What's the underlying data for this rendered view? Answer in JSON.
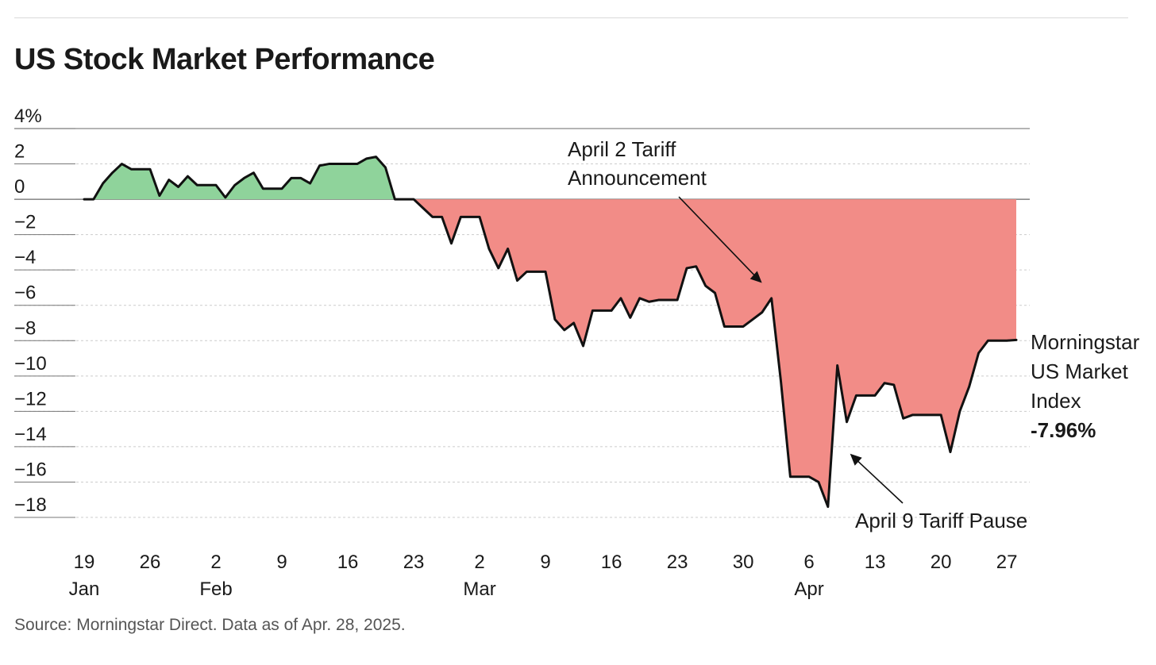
{
  "title": "US Stock Market Performance",
  "source": "Source: Morningstar Direct. Data as of Apr. 28, 2025.",
  "colors": {
    "positive_fill": "#8fd39b",
    "negative_fill": "#f28c87",
    "line": "#111111",
    "gridline": "#cccccc",
    "axis": "#888888"
  },
  "chart_data": {
    "type": "area",
    "title": "US Stock Market Performance",
    "xlabel": "",
    "ylabel": "",
    "ylim": [
      -18,
      4
    ],
    "xlim": [
      "2025-01-19",
      "2025-04-28"
    ],
    "grid": true,
    "y_ticks": [
      "4%",
      "2",
      "0",
      "−2",
      "−4",
      "−6",
      "−8",
      "−10",
      "−12",
      "−14",
      "−16",
      "−18"
    ],
    "y_tick_values": [
      4,
      2,
      0,
      -2,
      -4,
      -6,
      -8,
      -10,
      -12,
      -14,
      -16,
      -18
    ],
    "x_ticks": [
      {
        "date": "2025-01-19",
        "day": "19",
        "month": "Jan"
      },
      {
        "date": "2025-01-26",
        "day": "26",
        "month": ""
      },
      {
        "date": "2025-02-02",
        "day": "2",
        "month": "Feb"
      },
      {
        "date": "2025-02-09",
        "day": "9",
        "month": ""
      },
      {
        "date": "2025-02-16",
        "day": "16",
        "month": ""
      },
      {
        "date": "2025-02-23",
        "day": "23",
        "month": ""
      },
      {
        "date": "2025-03-02",
        "day": "2",
        "month": "Mar"
      },
      {
        "date": "2025-03-09",
        "day": "9",
        "month": ""
      },
      {
        "date": "2025-03-16",
        "day": "16",
        "month": ""
      },
      {
        "date": "2025-03-23",
        "day": "23",
        "month": ""
      },
      {
        "date": "2025-03-30",
        "day": "30",
        "month": ""
      },
      {
        "date": "2025-04-06",
        "day": "6",
        "month": "Apr"
      },
      {
        "date": "2025-04-13",
        "day": "13",
        "month": ""
      },
      {
        "date": "2025-04-20",
        "day": "20",
        "month": ""
      },
      {
        "date": "2025-04-27",
        "day": "27",
        "month": ""
      }
    ],
    "series": [
      {
        "points": [
          [
            "2025-01-19",
            0.0
          ],
          [
            "2025-01-20",
            0.0
          ],
          [
            "2025-01-21",
            0.9
          ],
          [
            "2025-01-22",
            1.5
          ],
          [
            "2025-01-23",
            2.0
          ],
          [
            "2025-01-24",
            1.7
          ],
          [
            "2025-01-25",
            1.7
          ],
          [
            "2025-01-26",
            1.7
          ],
          [
            "2025-01-27",
            0.2
          ],
          [
            "2025-01-28",
            1.1
          ],
          [
            "2025-01-29",
            0.7
          ],
          [
            "2025-01-30",
            1.3
          ],
          [
            "2025-01-31",
            0.8
          ],
          [
            "2025-02-01",
            0.8
          ],
          [
            "2025-02-02",
            0.8
          ],
          [
            "2025-02-03",
            0.1
          ],
          [
            "2025-02-04",
            0.8
          ],
          [
            "2025-02-05",
            1.2
          ],
          [
            "2025-02-06",
            1.5
          ],
          [
            "2025-02-07",
            0.6
          ],
          [
            "2025-02-08",
            0.6
          ],
          [
            "2025-02-09",
            0.6
          ],
          [
            "2025-02-10",
            1.2
          ],
          [
            "2025-02-11",
            1.2
          ],
          [
            "2025-02-12",
            0.9
          ],
          [
            "2025-02-13",
            1.9
          ],
          [
            "2025-02-14",
            2.0
          ],
          [
            "2025-02-15",
            2.0
          ],
          [
            "2025-02-16",
            2.0
          ],
          [
            "2025-02-17",
            2.0
          ],
          [
            "2025-02-18",
            2.3
          ],
          [
            "2025-02-19",
            2.4
          ],
          [
            "2025-02-20",
            1.8
          ],
          [
            "2025-02-21",
            0.0
          ],
          [
            "2025-02-22",
            0.0
          ],
          [
            "2025-02-23",
            0.0
          ],
          [
            "2025-02-24",
            -0.5
          ],
          [
            "2025-02-25",
            -1.0
          ],
          [
            "2025-02-26",
            -1.0
          ],
          [
            "2025-02-27",
            -2.5
          ],
          [
            "2025-02-28",
            -1.0
          ],
          [
            "2025-03-01",
            -1.0
          ],
          [
            "2025-03-02",
            -1.0
          ],
          [
            "2025-03-03",
            -2.8
          ],
          [
            "2025-03-04",
            -3.9
          ],
          [
            "2025-03-05",
            -2.8
          ],
          [
            "2025-03-06",
            -4.6
          ],
          [
            "2025-03-07",
            -4.1
          ],
          [
            "2025-03-08",
            -4.1
          ],
          [
            "2025-03-09",
            -4.1
          ],
          [
            "2025-03-10",
            -6.8
          ],
          [
            "2025-03-11",
            -7.4
          ],
          [
            "2025-03-12",
            -7.0
          ],
          [
            "2025-03-13",
            -8.3
          ],
          [
            "2025-03-14",
            -6.3
          ],
          [
            "2025-03-15",
            -6.3
          ],
          [
            "2025-03-16",
            -6.3
          ],
          [
            "2025-03-17",
            -5.6
          ],
          [
            "2025-03-18",
            -6.7
          ],
          [
            "2025-03-19",
            -5.6
          ],
          [
            "2025-03-20",
            -5.8
          ],
          [
            "2025-03-21",
            -5.7
          ],
          [
            "2025-03-22",
            -5.7
          ],
          [
            "2025-03-23",
            -5.7
          ],
          [
            "2025-03-24",
            -3.9
          ],
          [
            "2025-03-25",
            -3.8
          ],
          [
            "2025-03-26",
            -4.9
          ],
          [
            "2025-03-27",
            -5.3
          ],
          [
            "2025-03-28",
            -7.2
          ],
          [
            "2025-03-29",
            -7.2
          ],
          [
            "2025-03-30",
            -7.2
          ],
          [
            "2025-03-31",
            -6.8
          ],
          [
            "2025-04-01",
            -6.4
          ],
          [
            "2025-04-02",
            -5.6
          ],
          [
            "2025-04-03",
            -10.3
          ],
          [
            "2025-04-04",
            -15.7
          ],
          [
            "2025-04-05",
            -15.7
          ],
          [
            "2025-04-06",
            -15.7
          ],
          [
            "2025-04-07",
            -16.0
          ],
          [
            "2025-04-08",
            -17.4
          ],
          [
            "2025-04-09",
            -9.4
          ],
          [
            "2025-04-10",
            -12.6
          ],
          [
            "2025-04-11",
            -11.1
          ],
          [
            "2025-04-12",
            -11.1
          ],
          [
            "2025-04-13",
            -11.1
          ],
          [
            "2025-04-14",
            -10.4
          ],
          [
            "2025-04-15",
            -10.5
          ],
          [
            "2025-04-16",
            -12.4
          ],
          [
            "2025-04-17",
            -12.2
          ],
          [
            "2025-04-18",
            -12.2
          ],
          [
            "2025-04-19",
            -12.2
          ],
          [
            "2025-04-20",
            -12.2
          ],
          [
            "2025-04-21",
            -14.3
          ],
          [
            "2025-04-22",
            -12.0
          ],
          [
            "2025-04-23",
            -10.6
          ],
          [
            "2025-04-24",
            -8.7
          ],
          [
            "2025-04-25",
            -8.0
          ],
          [
            "2025-04-26",
            -8.0
          ],
          [
            "2025-04-27",
            -8.0
          ],
          [
            "2025-04-28",
            -7.96
          ]
        ]
      }
    ],
    "annotations": {
      "tariff_announcement": {
        "lines": [
          "April 2 Tariff",
          "Announcement"
        ],
        "arrow_to": [
          "2025-04-02",
          -4.6
        ]
      },
      "tariff_pause": {
        "lines": [
          "April 9 Tariff Pause"
        ],
        "arrow_to": [
          "2025-04-09",
          -14.8
        ]
      },
      "end_label": {
        "lines": [
          "Morningstar",
          "US Market",
          "Index"
        ],
        "value_label": "-7.96%"
      }
    }
  }
}
